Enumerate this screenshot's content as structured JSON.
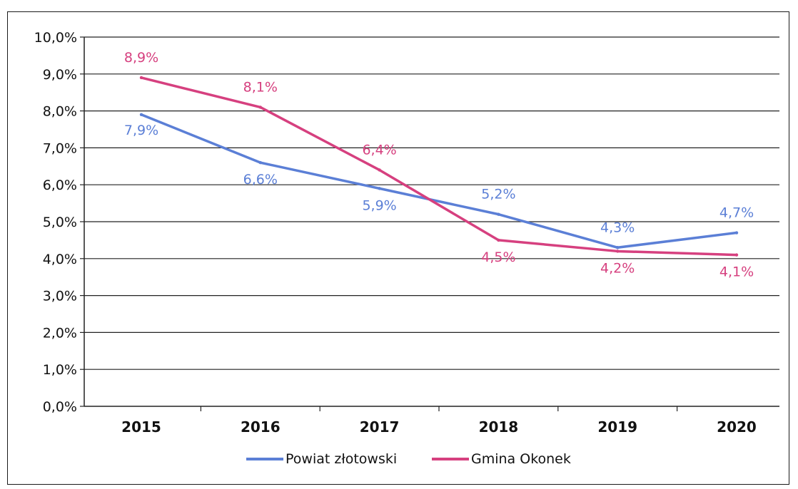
{
  "chart_data": {
    "type": "line",
    "title": "",
    "xlabel": "",
    "ylabel": "",
    "categories": [
      "2015",
      "2016",
      "2017",
      "2018",
      "2019",
      "2020"
    ],
    "ylim": [
      0,
      10
    ],
    "ytick_labels": [
      "0,0%",
      "1,0%",
      "2,0%",
      "3,0%",
      "4,0%",
      "5,0%",
      "6,0%",
      "7,0%",
      "8,0%",
      "9,0%",
      "10,0%"
    ],
    "grid": true,
    "legend_position": "bottom",
    "series": [
      {
        "name": "Powiat złotowski",
        "color": "#5b7fd6",
        "values": [
          7.9,
          6.6,
          5.9,
          5.2,
          4.3,
          4.7
        ],
        "labels": [
          "7,9%",
          "6,6%",
          "5,9%",
          "5,2%",
          "4,3%",
          "4,7%"
        ]
      },
      {
        "name": "Gmina Okonek",
        "color": "#d6407f",
        "values": [
          8.9,
          8.1,
          6.4,
          4.5,
          4.2,
          4.1
        ],
        "labels": [
          "8,9%",
          "8,1%",
          "6,4%",
          "4,5%",
          "4,2%",
          "4,1%"
        ]
      }
    ]
  }
}
